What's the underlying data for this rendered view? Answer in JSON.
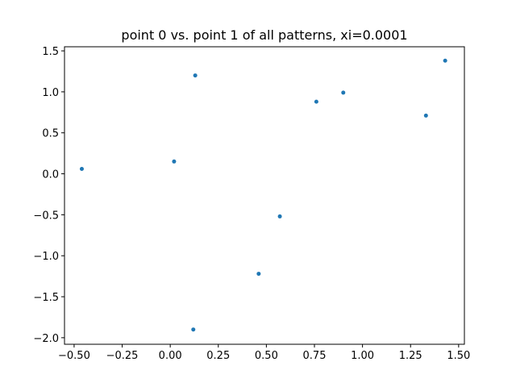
{
  "chart_data": {
    "type": "scatter",
    "title": "point 0 vs. point 1 of all patterns, xi=0.0001",
    "xlabel": "",
    "ylabel": "",
    "xlim": [
      -0.55,
      1.53
    ],
    "ylim": [
      -2.08,
      1.55
    ],
    "grid": false,
    "marker_color": "#1f77b4",
    "x_ticks": [
      {
        "value": -0.5,
        "label": "−0.50"
      },
      {
        "value": -0.25,
        "label": "−0.25"
      },
      {
        "value": 0.0,
        "label": "0.00"
      },
      {
        "value": 0.25,
        "label": "0.25"
      },
      {
        "value": 0.5,
        "label": "0.50"
      },
      {
        "value": 0.75,
        "label": "0.75"
      },
      {
        "value": 1.0,
        "label": "1.00"
      },
      {
        "value": 1.25,
        "label": "1.25"
      },
      {
        "value": 1.5,
        "label": "1.50"
      }
    ],
    "y_ticks": [
      {
        "value": -2.0,
        "label": "−2.0"
      },
      {
        "value": -1.5,
        "label": "−1.5"
      },
      {
        "value": -1.0,
        "label": "−1.0"
      },
      {
        "value": -0.5,
        "label": "−0.5"
      },
      {
        "value": 0.0,
        "label": "0.0"
      },
      {
        "value": 0.5,
        "label": "0.5"
      },
      {
        "value": 1.0,
        "label": "1.0"
      },
      {
        "value": 1.5,
        "label": "1.5"
      }
    ],
    "points": [
      {
        "x": -0.46,
        "y": 0.06
      },
      {
        "x": 0.02,
        "y": 0.15
      },
      {
        "x": 0.13,
        "y": 1.2
      },
      {
        "x": 0.12,
        "y": -1.9
      },
      {
        "x": 0.46,
        "y": -1.22
      },
      {
        "x": 0.57,
        "y": -0.52
      },
      {
        "x": 0.76,
        "y": 0.88
      },
      {
        "x": 0.9,
        "y": 0.99
      },
      {
        "x": 1.33,
        "y": 0.71
      },
      {
        "x": 1.43,
        "y": 1.38
      }
    ]
  }
}
